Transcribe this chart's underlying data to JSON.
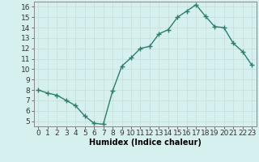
{
  "x": [
    0,
    1,
    2,
    3,
    4,
    5,
    6,
    7,
    8,
    9,
    10,
    11,
    12,
    13,
    14,
    15,
    16,
    17,
    18,
    19,
    20,
    21,
    22,
    23
  ],
  "y": [
    8.0,
    7.7,
    7.5,
    7.0,
    6.5,
    5.5,
    4.8,
    4.7,
    7.9,
    10.3,
    11.1,
    12.0,
    12.2,
    13.4,
    13.8,
    15.0,
    15.6,
    16.2,
    15.1,
    14.1,
    14.0,
    12.5,
    11.7,
    10.4
  ],
  "line_color": "#2e7d6e",
  "marker": "+",
  "marker_size": 4,
  "linewidth": 1.0,
  "xlabel": "Humidex (Indice chaleur)",
  "xlim": [
    -0.5,
    23.5
  ],
  "ylim": [
    4.5,
    16.5
  ],
  "yticks": [
    5,
    6,
    7,
    8,
    9,
    10,
    11,
    12,
    13,
    14,
    15,
    16
  ],
  "xticks": [
    0,
    1,
    2,
    3,
    4,
    5,
    6,
    7,
    8,
    9,
    10,
    11,
    12,
    13,
    14,
    15,
    16,
    17,
    18,
    19,
    20,
    21,
    22,
    23
  ],
  "xtick_labels": [
    "0",
    "1",
    "2",
    "3",
    "4",
    "5",
    "6",
    "7",
    "8",
    "9",
    "10",
    "11",
    "12",
    "13",
    "14",
    "15",
    "16",
    "17",
    "18",
    "19",
    "20",
    "21",
    "22",
    "23"
  ],
  "bg_color": "#d5f0ee",
  "grid_color": "#c8e0dc",
  "spine_color": "#888888",
  "xlabel_fontsize": 7,
  "tick_fontsize": 6.5
}
